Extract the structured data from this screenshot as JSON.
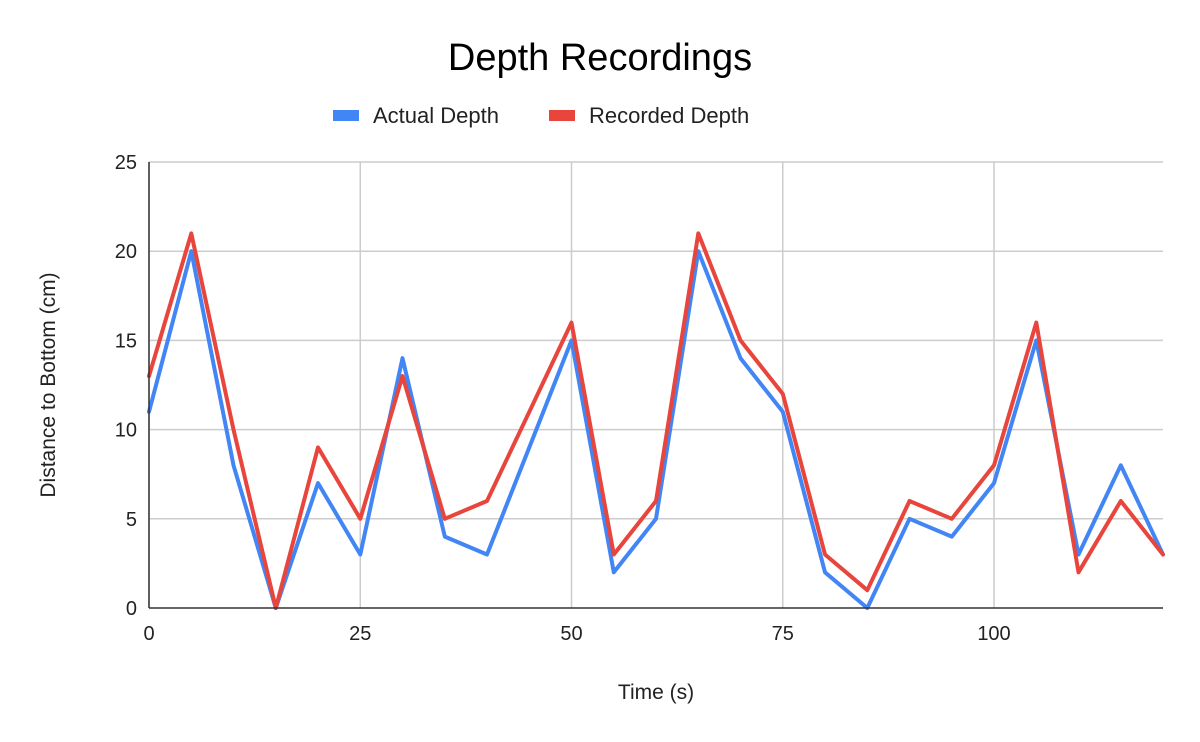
{
  "chart_data": {
    "type": "line",
    "title": "Depth Recordings",
    "xlabel": "Time (s)",
    "ylabel": "Distance to Bottom (cm)",
    "x": [
      0,
      5,
      10,
      15,
      20,
      25,
      30,
      35,
      40,
      45,
      50,
      55,
      60,
      65,
      70,
      75,
      80,
      85,
      90,
      95,
      100,
      105,
      110,
      115,
      120
    ],
    "xlim": [
      0,
      120
    ],
    "ylim": [
      0,
      25
    ],
    "x_ticks": [
      "0",
      "25",
      "50",
      "75",
      "100"
    ],
    "y_ticks": [
      "0",
      "5",
      "10",
      "15",
      "20",
      "25"
    ],
    "grid": true,
    "legend_position": "top",
    "series": [
      {
        "name": "Actual Depth",
        "color": "#4285f4",
        "values": [
          11,
          20,
          8,
          0,
          7,
          3,
          14,
          4,
          3,
          9,
          15,
          2,
          5,
          20,
          14,
          11,
          2,
          0,
          5,
          4,
          7,
          15,
          3,
          8,
          3
        ]
      },
      {
        "name": "Recorded Depth",
        "color": "#e8453c",
        "values": [
          13,
          21,
          10,
          0,
          9,
          5,
          13,
          5,
          6,
          11,
          16,
          3,
          6,
          21,
          15,
          12,
          3,
          1,
          6,
          5,
          8,
          16,
          2,
          6,
          3
        ]
      }
    ]
  }
}
